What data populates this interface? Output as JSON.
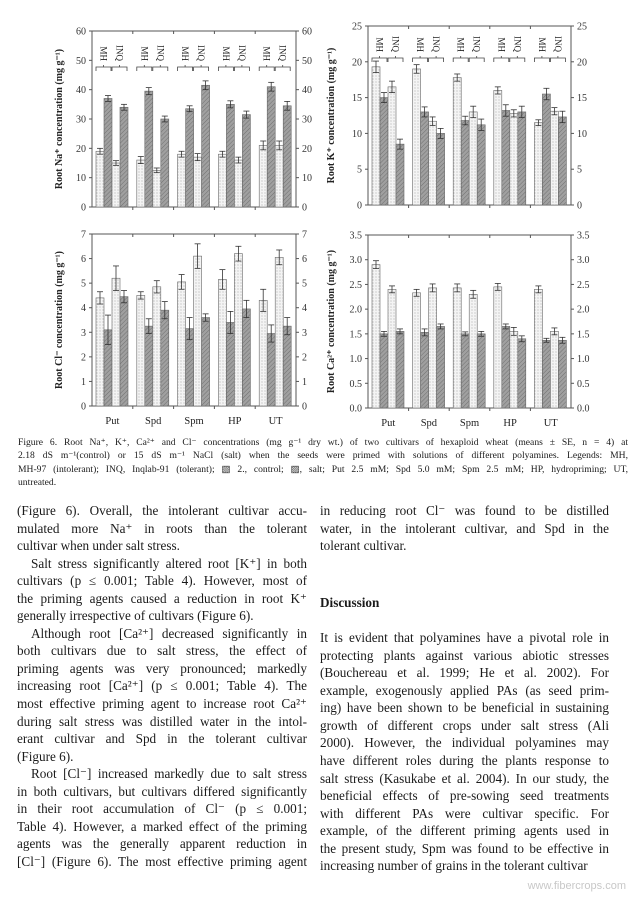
{
  "figure": {
    "group_labels": [
      "MH",
      "INQ"
    ],
    "colors": {
      "control_fill": "#f2f2f2",
      "salt_fill": "#9a9a9a",
      "axis": "#555555"
    },
    "chart_data": [
      {
        "type": "bar",
        "ylabel": "Root Na⁺ concentration (mg g⁻¹)",
        "ylim": [
          0,
          60
        ],
        "yticks": [
          "0",
          "10",
          "20",
          "30",
          "40",
          "50",
          "60"
        ],
        "categories": [
          "Put",
          "Spd",
          "Spm",
          "HP",
          "UT"
        ],
        "show_category_labels": false,
        "show_group_labels": true,
        "series": [
          {
            "name": "MH control",
            "values": [
              19,
              16,
              18,
              18,
              21
            ],
            "se": [
              1,
              1.2,
              1,
              1,
              1.5
            ]
          },
          {
            "name": "MH salt",
            "values": [
              37,
              39.5,
              33.5,
              35,
              41
            ],
            "se": [
              1,
              1.2,
              1,
              1.2,
              1.5
            ]
          },
          {
            "name": "INQ control",
            "values": [
              15,
              12.5,
              17,
              16,
              21
            ],
            "se": [
              0.8,
              0.8,
              1.2,
              1,
              1.5
            ]
          },
          {
            "name": "INQ salt",
            "values": [
              34,
              30,
              41.5,
              31.5,
              34.5
            ],
            "se": [
              1,
              1,
              1.5,
              1.2,
              1.5
            ]
          }
        ]
      },
      {
        "type": "bar",
        "ylabel": "Root K⁺ concentration (mg g⁻¹)",
        "ylim": [
          0,
          25
        ],
        "yticks": [
          "0",
          "5",
          "10",
          "15",
          "20",
          "25"
        ],
        "categories": [
          "Put",
          "Spd",
          "Spm",
          "HP",
          "UT"
        ],
        "show_category_labels": false,
        "show_group_labels": true,
        "series": [
          {
            "name": "MH control",
            "values": [
              19.3,
              19,
              17.8,
              16,
              11.5
            ],
            "se": [
              0.8,
              0.6,
              0.5,
              0.5,
              0.4
            ]
          },
          {
            "name": "MH salt",
            "values": [
              15,
              13,
              11.8,
              13.2,
              15.5
            ],
            "se": [
              0.7,
              0.7,
              0.6,
              0.8,
              0.8
            ]
          },
          {
            "name": "INQ control",
            "values": [
              16.5,
              11.7,
              13,
              12.8,
              13.1
            ],
            "se": [
              0.8,
              0.6,
              0.8,
              0.5,
              0.5
            ]
          },
          {
            "name": "INQ salt",
            "values": [
              8.5,
              10,
              11.2,
              13,
              12.3
            ],
            "se": [
              0.7,
              0.7,
              0.8,
              0.8,
              0.8
            ]
          }
        ]
      },
      {
        "type": "bar",
        "ylabel": "Root Cl⁻ concentration (mg g⁻¹)",
        "ylim": [
          0,
          7
        ],
        "yticks": [
          "0",
          "1",
          "2",
          "3",
          "4",
          "5",
          "6",
          "7"
        ],
        "categories": [
          "Put",
          "Spd",
          "Spm",
          "HP",
          "UT"
        ],
        "show_category_labels": true,
        "show_group_labels": false,
        "series": [
          {
            "name": "MH control",
            "values": [
              4.4,
              4.5,
              5.05,
              5.15,
              4.3
            ],
            "se": [
              0.25,
              0.15,
              0.3,
              0.4,
              0.45
            ]
          },
          {
            "name": "MH salt",
            "values": [
              3.1,
              3.25,
              3.15,
              3.4,
              2.95
            ],
            "se": [
              0.6,
              0.3,
              0.45,
              0.45,
              0.35
            ]
          },
          {
            "name": "INQ control",
            "values": [
              5.2,
              4.85,
              6.1,
              6.2,
              6.05
            ],
            "se": [
              0.5,
              0.25,
              0.5,
              0.3,
              0.3
            ]
          },
          {
            "name": "INQ salt",
            "values": [
              4.45,
              3.9,
              3.6,
              3.95,
              3.25
            ],
            "se": [
              0.25,
              0.35,
              0.15,
              0.35,
              0.35
            ]
          }
        ]
      },
      {
        "type": "bar",
        "ylabel": "Root Ca²⁺ concentration (mg g⁻¹)",
        "ylim": [
          0,
          3.5
        ],
        "yticks": [
          "0.0",
          "0.5",
          "1.0",
          "1.5",
          "2.0",
          "2.5",
          "3.0",
          "3.5"
        ],
        "categories": [
          "Put",
          "Spd",
          "Spm",
          "HP",
          "UT"
        ],
        "show_category_labels": true,
        "show_group_labels": false,
        "series": [
          {
            "name": "MH control",
            "values": [
              2.9,
              2.33,
              2.43,
              2.45,
              2.4
            ],
            "se": [
              0.08,
              0.07,
              0.08,
              0.07,
              0.07
            ]
          },
          {
            "name": "MH salt",
            "values": [
              1.5,
              1.53,
              1.5,
              1.65,
              1.37
            ],
            "se": [
              0.05,
              0.07,
              0.04,
              0.05,
              0.04
            ]
          },
          {
            "name": "INQ control",
            "values": [
              2.4,
              2.43,
              2.3,
              1.55,
              1.55
            ],
            "se": [
              0.07,
              0.08,
              0.08,
              0.08,
              0.07
            ]
          },
          {
            "name": "INQ salt",
            "values": [
              1.55,
              1.65,
              1.5,
              1.4,
              1.37
            ],
            "se": [
              0.05,
              0.05,
              0.05,
              0.06,
              0.06
            ]
          }
        ]
      }
    ]
  },
  "caption": {
    "lines": [
      "Figure 6. Root Na⁺, K⁺, Ca²⁺ and Cl⁻ concentrations (mg g⁻¹ dry wt.) of two cultivars of hexaploid wheat (means ± SE, n = 4) at",
      "2.18 dS m⁻¹(control) or 15 dS m⁻¹ NaCl (salt) when the seeds were primed with solutions of different polyamines. Legends: MH,",
      "MH-97 (intolerant); INQ, Inqlab-91 (tolerant); ▧ 2., control; ▨, salt; Put 2.5 mM; Spd 5.0 mM; Spm 2.5 mM; HP, hydropriming; UT,",
      "untreated."
    ]
  },
  "body": {
    "left_column": [
      "(Figure 6). Overall, the intolerant cultivar accu-",
      "mulated more Na⁺ in roots than the tolerant",
      "cultivar when under salt stress.",
      "Salt stress significantly altered root [K⁺] in both",
      "cultivars (p ≤ 0.001; Table 4). However, most of",
      "the priming agents caused a reduction in root K⁺",
      "generally irrespective of cultivars (Figure 6).",
      "Although root [Ca²⁺] decreased significantly in",
      "both cultivars due to salt stress, the effect of",
      "priming agents was very pronounced; markedly",
      "increasing root [Ca²⁺] (p ≤ 0.001; Table 4). The",
      "most effective priming agent to increase root Ca²⁺",
      "during salt stress was distilled water in the intol-",
      "erant cultivar and Spd in the tolerant cultivar",
      "(Figure 6).",
      "Root [Cl⁻] increased markedly due to salt stress",
      "in both cultivars, but cultivars differed significantly",
      "in their root accumulation of Cl⁻ (p ≤ 0.001;",
      "Table 4). However, a marked effect of the priming",
      "agents was the generally apparent reduction in",
      "[Cl⁻] (Figure 6). The most effective priming agent"
    ],
    "right_column_top": [
      "in reducing root Cl⁻ was found to be distilled",
      "water, in the intolerant cultivar, and Spd in the",
      "tolerant cultivar."
    ],
    "discussion_heading": "Discussion",
    "discussion": [
      "It is evident that polyamines have a pivotal role in",
      "protecting plants against various abiotic stresses",
      "(Bouchereau et al. 1999; He et al. 2002). For",
      "example, exogenously applied PAs (as seed prim-",
      "ing) have been shown to be beneficial in sustaining",
      "growth of different crops under salt stress (Ali",
      "2000). However, the individual polyamines may",
      "have different roles during the plants response to",
      "salt stress (Kasukabe et al. 2004). In our study, the",
      "beneficial effects of pre-sowing seed treatments",
      "with different PAs were cultivar specific. For",
      "example, of the different priming agents used in",
      "the present study, Spm was found to be effective in",
      "increasing number of grains in the tolerant cultivar"
    ]
  },
  "watermark": "www.fibercrops.com"
}
